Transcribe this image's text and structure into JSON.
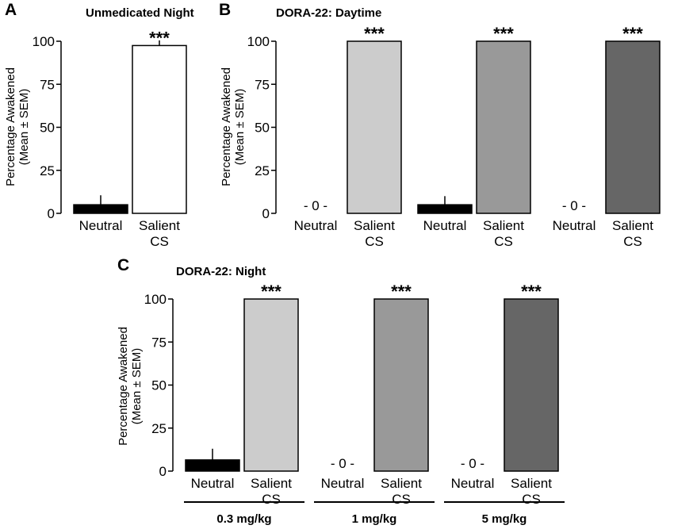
{
  "chart_data": [
    {
      "panel": "A",
      "title": "Unmedicated Night",
      "type": "bar",
      "ylabel": [
        "Percentage Awakened",
        "(Mean ± SEM)"
      ],
      "ylim": [
        0,
        100
      ],
      "yticks": [
        0,
        25,
        50,
        75,
        100
      ],
      "categories": [
        [
          "Neutral"
        ],
        [
          "Salient",
          "CS"
        ]
      ],
      "values": [
        5,
        97.5
      ],
      "errors": [
        5.5,
        3
      ],
      "colors": [
        "#000000",
        "#ffffff"
      ],
      "zero_labels": [
        "",
        ""
      ],
      "significance": [
        "",
        "***"
      ]
    },
    {
      "panel": "B",
      "title": "DORA-22: Daytime",
      "type": "bar",
      "ylabel": [
        "Percentage Awakened",
        "(Mean ± SEM)"
      ],
      "ylim": [
        0,
        100
      ],
      "yticks": [
        0,
        25,
        50,
        75,
        100
      ],
      "categories": [
        [
          "Neutral"
        ],
        [
          "Salient",
          "CS"
        ],
        [
          "Neutral"
        ],
        [
          "Salient",
          "CS"
        ],
        [
          "Neutral"
        ],
        [
          "Salient",
          "CS"
        ]
      ],
      "values": [
        0,
        100,
        5,
        100,
        0,
        100
      ],
      "errors": [
        0,
        0,
        5,
        0,
        0,
        0
      ],
      "colors": [
        "#000000",
        "#cccccc",
        "#000000",
        "#999999",
        "#000000",
        "#666666"
      ],
      "zero_labels": [
        "- 0 -",
        "",
        "",
        "",
        "- 0 -",
        ""
      ],
      "significance": [
        "",
        "***",
        "",
        "***",
        "",
        "***"
      ]
    },
    {
      "panel": "C",
      "title": "DORA-22: Night",
      "type": "bar",
      "ylabel": [
        "Percentage Awakened",
        "(Mean ± SEM)"
      ],
      "ylim": [
        0,
        100
      ],
      "yticks": [
        0,
        25,
        50,
        75,
        100
      ],
      "categories": [
        [
          "Neutral"
        ],
        [
          "Salient",
          "CS"
        ],
        [
          "Neutral"
        ],
        [
          "Salient",
          "CS"
        ],
        [
          "Neutral"
        ],
        [
          "Salient",
          "CS"
        ]
      ],
      "values": [
        6.5,
        100,
        0,
        100,
        0,
        100
      ],
      "errors": [
        6.5,
        0,
        0,
        0,
        0,
        0
      ],
      "colors": [
        "#000000",
        "#cccccc",
        "#000000",
        "#999999",
        "#000000",
        "#666666"
      ],
      "zero_labels": [
        "",
        "",
        "- 0 -",
        "",
        "- 0 -",
        ""
      ],
      "significance": [
        "",
        "***",
        "",
        "***",
        "",
        "***"
      ],
      "groups": [
        "0.3 mg/kg",
        "1 mg/kg",
        "5 mg/kg"
      ]
    }
  ]
}
